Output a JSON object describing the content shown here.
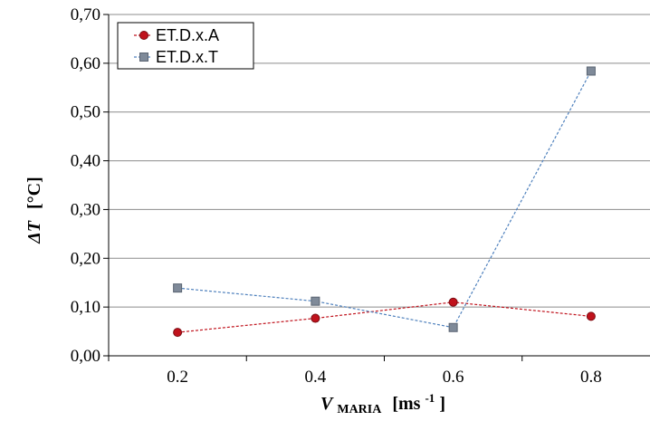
{
  "chart_data": {
    "type": "line",
    "x": [
      0.2,
      0.4,
      0.6,
      0.8
    ],
    "x_tick_labels": [
      "0.2",
      "0.4",
      "0.6",
      "0.8"
    ],
    "y_tick_labels": [
      "0,00",
      "0,10",
      "0,20",
      "0,30",
      "0,40",
      "0,50",
      "0,60",
      "0,70"
    ],
    "xlim": [
      0.1,
      0.9
    ],
    "ylim": [
      0,
      0.7
    ],
    "grid": "horizontal",
    "legend_position": "top-left",
    "ylabel": {
      "main": "ΔT",
      "unit": "[°C]"
    },
    "xlabel": {
      "main": "V",
      "subscript": "MARIA",
      "unit_prefix": "[ms",
      "unit_exp": "-1",
      "unit_suffix": "]"
    },
    "series": [
      {
        "name": "ET.D.x.A",
        "color": "#c0121c",
        "marker": "circle",
        "values": [
          0.048,
          0.077,
          0.11,
          0.081
        ]
      },
      {
        "name": "ET.D.x.T",
        "color": "#4f81bd",
        "marker": "square",
        "values": [
          0.139,
          0.112,
          0.058,
          0.584
        ]
      }
    ]
  }
}
